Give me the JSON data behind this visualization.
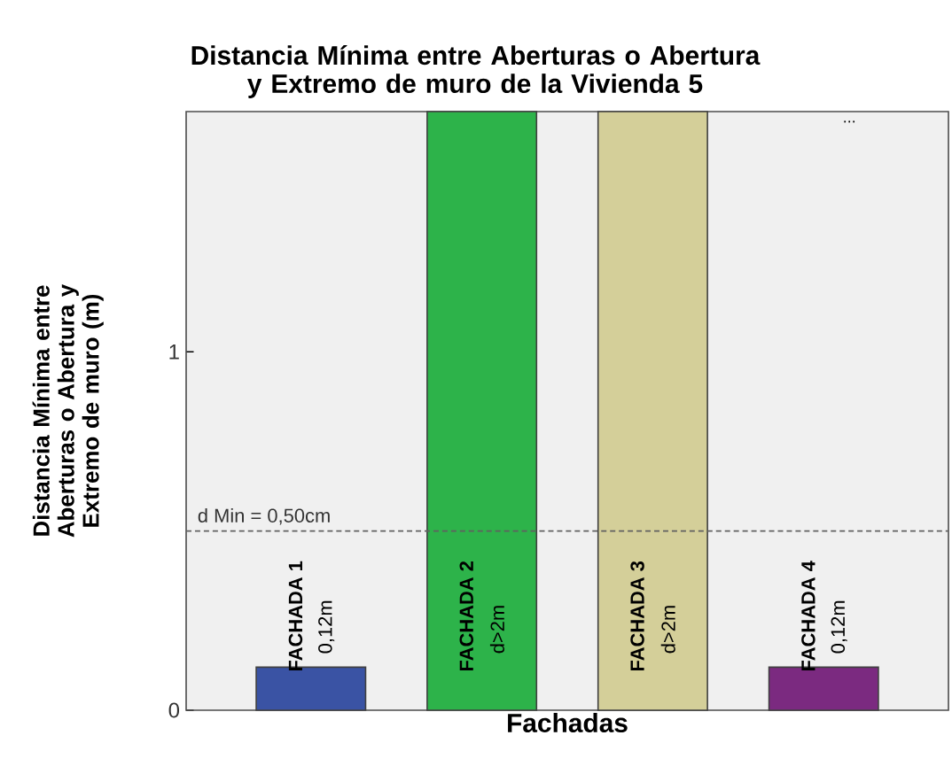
{
  "chart_data": {
    "type": "bar",
    "title": "Distancia Mínima entre Aberturas o Abertura y Extremo de muro de la  Vivienda 5",
    "xlabel": "Fachadas",
    "ylabel": "Distancia Mínima entre Aberturas o Abertura y Extremo de muro (m)",
    "categories": [
      "FACHADA 1",
      "FACHADA 2",
      "FACHADA 3",
      "FACHADA 4"
    ],
    "values": [
      0.12,
      1.67,
      1.67,
      0.12
    ],
    "value_labels": [
      "0,12m",
      "d>2m",
      "d>2m",
      "0,12m"
    ],
    "colors": [
      "#3a53a4",
      "#2db34a",
      "#d4cf99",
      "#7b2a80"
    ],
    "ylim": [
      0,
      1.67
    ],
    "yticks": [
      0,
      1
    ],
    "grid": false,
    "ref_lines": [
      {
        "axis": "y",
        "value": 0.5,
        "label": "d Min  = 0,50cm",
        "color": "#606060",
        "line_style": "dashed"
      }
    ],
    "annotations": [
      "..."
    ]
  }
}
